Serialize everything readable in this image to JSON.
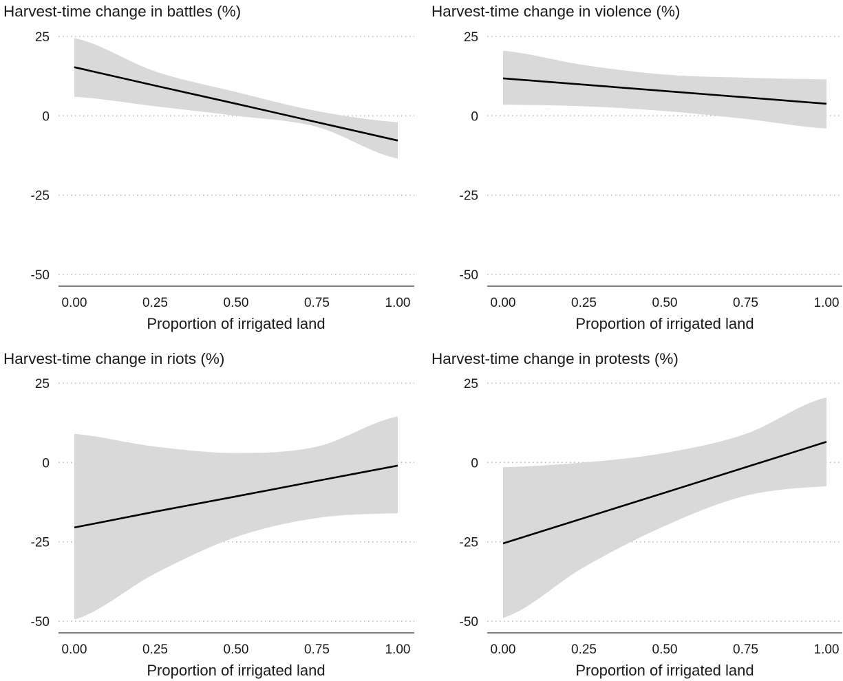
{
  "colors": {
    "band": "#d9d9d9",
    "line": "#000000",
    "grid": "#b9b9b9",
    "axis": "#333333"
  },
  "chart_data": [
    {
      "type": "line",
      "title": "Harvest-time change in battles (%)",
      "xlabel": "Proportion of irrigated land",
      "ylabel": "",
      "xlim": [
        0,
        1
      ],
      "ylim": [
        -50,
        25
      ],
      "xticks": [
        "0.00",
        "0.25",
        "0.50",
        "0.75",
        "1.00"
      ],
      "yticks": [
        "25",
        "0",
        "-25",
        "-50"
      ],
      "grid": "horizontal dotted",
      "x": [
        0,
        0.25,
        0.5,
        0.75,
        1.0
      ],
      "series": [
        {
          "values": [
            15.3,
            9.5,
            3.8,
            -2.0,
            -7.8
          ]
        }
      ],
      "ci_lower": [
        6,
        3,
        0,
        -3.5,
        -13.5
      ],
      "ci_upper": [
        24.5,
        14,
        7.5,
        1.5,
        -2
      ]
    },
    {
      "type": "line",
      "title": "Harvest-time change in violence (%)",
      "xlabel": "Proportion of irrigated land",
      "ylabel": "",
      "xlim": [
        0,
        1
      ],
      "ylim": [
        -50,
        25
      ],
      "xticks": [
        "0.00",
        "0.25",
        "0.50",
        "0.75",
        "1.00"
      ],
      "yticks": [
        "25",
        "0",
        "-25",
        "-50"
      ],
      "grid": "horizontal dotted",
      "x": [
        0,
        0.25,
        0.5,
        0.75,
        1.0
      ],
      "series": [
        {
          "values": [
            11.8,
            9.8,
            7.8,
            5.8,
            3.8
          ]
        }
      ],
      "ci_lower": [
        3.5,
        3,
        1.5,
        -1,
        -4
      ],
      "ci_upper": [
        20.5,
        16,
        13,
        12,
        11.5
      ]
    },
    {
      "type": "line",
      "title": "Harvest-time change in riots (%)",
      "xlabel": "Proportion of irrigated land",
      "ylabel": "",
      "xlim": [
        0,
        1
      ],
      "ylim": [
        -50,
        25
      ],
      "xticks": [
        "0.00",
        "0.25",
        "0.50",
        "0.75",
        "1.00"
      ],
      "yticks": [
        "25",
        "0",
        "-25",
        "-50"
      ],
      "grid": "horizontal dotted",
      "x": [
        0,
        0.25,
        0.5,
        0.75,
        1.0
      ],
      "series": [
        {
          "values": [
            -20.5,
            -15.5,
            -10.7,
            -5.8,
            -1.0
          ]
        }
      ],
      "ci_lower": [
        -49.5,
        -35,
        -23.5,
        -17.5,
        -16
      ],
      "ci_upper": [
        9,
        5,
        3,
        5,
        14.5
      ]
    },
    {
      "type": "line",
      "title": "Harvest-time change in protests (%)",
      "xlabel": "Proportion of irrigated land",
      "ylabel": "",
      "xlim": [
        0,
        1
      ],
      "ylim": [
        -50,
        25
      ],
      "xticks": [
        "0.00",
        "0.25",
        "0.50",
        "0.75",
        "1.00"
      ],
      "yticks": [
        "25",
        "0",
        "-25",
        "-50"
      ],
      "grid": "horizontal dotted",
      "x": [
        0,
        0.25,
        0.5,
        0.75,
        1.0
      ],
      "series": [
        {
          "values": [
            -25.5,
            -17.5,
            -9.5,
            -1.5,
            6.5
          ]
        }
      ],
      "ci_lower": [
        -49,
        -33,
        -20,
        -10.5,
        -7.5
      ],
      "ci_upper": [
        -1.5,
        0,
        3,
        9,
        20.5
      ]
    }
  ]
}
